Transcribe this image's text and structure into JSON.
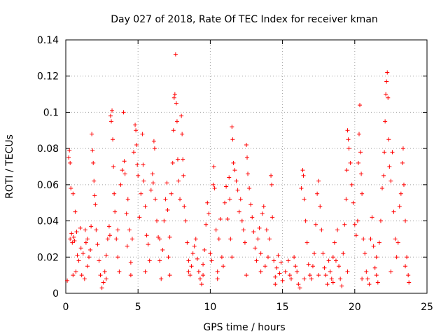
{
  "chart_data": {
    "type": "scatter",
    "title": "Day 027 of 2018, Rate Of TEC Index for receiver kman",
    "xlabel": "GPS time / hours",
    "ylabel": "ROTI / TECUs",
    "xlim": [
      0,
      25
    ],
    "ylim": [
      0,
      0.14
    ],
    "x_ticks": [
      0,
      5,
      10,
      15,
      20,
      25
    ],
    "x_tick_labels": [
      "0",
      "5",
      "10",
      "15",
      "20",
      "25"
    ],
    "y_ticks": [
      0,
      0.02,
      0.04,
      0.06,
      0.08,
      0.1,
      0.12,
      0.14
    ],
    "y_tick_labels": [
      "0",
      "0.02",
      "0.04",
      "0.06",
      "0.08",
      "0.1",
      "0.12",
      "0.14"
    ],
    "grid": true,
    "marker": "+",
    "color": "#ff0000",
    "series": [
      {
        "name": "ROTI",
        "points": [
          [
            0.1,
            0.007
          ],
          [
            0.2,
            0.075
          ],
          [
            0.25,
            0.079
          ],
          [
            0.3,
            0.072
          ],
          [
            0.35,
            0.058
          ],
          [
            0.4,
            0.033
          ],
          [
            0.45,
            0.028
          ],
          [
            0.5,
            0.055
          ],
          [
            0.55,
            0.031
          ],
          [
            0.6,
            0.029
          ],
          [
            0.65,
            0.045
          ],
          [
            0.7,
            0.012
          ],
          [
            0.75,
            0.034
          ],
          [
            0.8,
            0.021
          ],
          [
            0.9,
            0.018
          ],
          [
            1.0,
            0.036
          ],
          [
            1.05,
            0.025
          ],
          [
            1.1,
            0.01
          ],
          [
            1.2,
            0.022
          ],
          [
            1.3,
            0.008
          ],
          [
            1.35,
            0.035
          ],
          [
            1.4,
            0.028
          ],
          [
            1.5,
            0.015
          ],
          [
            1.6,
            0.02
          ],
          [
            1.7,
            0.024
          ],
          [
            1.75,
            0.037
          ],
          [
            1.8,
            0.088
          ],
          [
            1.85,
            0.079
          ],
          [
            1.9,
            0.072
          ],
          [
            1.95,
            0.062
          ],
          [
            2.0,
            0.054
          ],
          [
            2.05,
            0.049
          ],
          [
            2.1,
            0.035
          ],
          [
            2.2,
            0.027
          ],
          [
            2.3,
            0.018
          ],
          [
            2.4,
            0.01
          ],
          [
            2.5,
            0.003
          ],
          [
            2.6,
            0.006
          ],
          [
            2.7,
            0.012
          ],
          [
            2.8,
            0.021
          ],
          [
            2.9,
            0.03
          ],
          [
            3.0,
            0.037
          ],
          [
            3.05,
            0.032
          ],
          [
            3.1,
            0.098
          ],
          [
            3.15,
            0.095
          ],
          [
            3.2,
            0.101
          ],
          [
            3.25,
            0.085
          ],
          [
            3.3,
            0.07
          ],
          [
            3.35,
            0.055
          ],
          [
            3.4,
            0.045
          ],
          [
            3.5,
            0.03
          ],
          [
            3.6,
            0.02
          ],
          [
            3.7,
            0.012
          ],
          [
            3.8,
            0.06
          ],
          [
            3.9,
            0.068
          ],
          [
            4.0,
            0.1
          ],
          [
            4.05,
            0.073
          ],
          [
            4.1,
            0.066
          ],
          [
            4.2,
            0.044
          ],
          [
            4.25,
            0.026
          ],
          [
            4.3,
            0.052
          ],
          [
            4.4,
            0.035
          ],
          [
            4.5,
            0.017
          ],
          [
            4.6,
            0.03
          ],
          [
            4.7,
            0.078
          ],
          [
            4.8,
            0.093
          ],
          [
            4.85,
            0.09
          ],
          [
            4.9,
            0.082
          ],
          [
            4.95,
            0.071
          ],
          [
            5.0,
            0.065
          ],
          [
            5.1,
            0.042
          ],
          [
            5.2,
            0.055
          ],
          [
            5.3,
            0.088
          ],
          [
            5.35,
            0.071
          ],
          [
            5.4,
            0.062
          ],
          [
            5.5,
            0.048
          ],
          [
            5.6,
            0.032
          ],
          [
            5.7,
            0.027
          ],
          [
            5.8,
            0.018
          ],
          [
            5.9,
            0.057
          ],
          [
            6.0,
            0.066
          ],
          [
            6.05,
            0.061
          ],
          [
            6.1,
            0.084
          ],
          [
            6.15,
            0.08
          ],
          [
            6.2,
            0.052
          ],
          [
            6.3,
            0.04
          ],
          [
            6.4,
            0.031
          ],
          [
            6.5,
            0.018
          ],
          [
            6.6,
            0.008
          ],
          [
            6.7,
            0.024
          ],
          [
            6.8,
            0.04
          ],
          [
            6.9,
            0.052
          ],
          [
            7.0,
            0.061
          ],
          [
            7.05,
            0.046
          ],
          [
            7.1,
            0.02
          ],
          [
            7.2,
            0.031
          ],
          [
            7.3,
            0.055
          ],
          [
            7.4,
            0.072
          ],
          [
            7.45,
            0.09
          ],
          [
            7.5,
            0.108
          ],
          [
            7.55,
            0.11
          ],
          [
            7.6,
            0.132
          ],
          [
            7.65,
            0.105
          ],
          [
            7.7,
            0.095
          ],
          [
            7.75,
            0.074
          ],
          [
            7.8,
            0.062
          ],
          [
            7.9,
            0.052
          ],
          [
            8.0,
            0.098
          ],
          [
            8.05,
            0.088
          ],
          [
            8.1,
            0.074
          ],
          [
            8.15,
            0.065
          ],
          [
            8.2,
            0.048
          ],
          [
            8.3,
            0.04
          ],
          [
            8.4,
            0.028
          ],
          [
            8.5,
            0.018
          ],
          [
            8.6,
            0.01
          ],
          [
            8.7,
            0.015
          ],
          [
            8.8,
            0.022
          ],
          [
            8.9,
            0.026
          ],
          [
            9.0,
            0.03
          ],
          [
            9.1,
            0.019
          ],
          [
            9.2,
            0.012
          ],
          [
            9.3,
            0.008
          ],
          [
            9.4,
            0.005
          ],
          [
            9.5,
            0.016
          ],
          [
            9.6,
            0.024
          ],
          [
            9.7,
            0.038
          ],
          [
            9.8,
            0.05
          ],
          [
            9.9,
            0.044
          ],
          [
            10.0,
            0.022
          ],
          [
            10.1,
            0.018
          ],
          [
            10.2,
            0.06
          ],
          [
            10.25,
            0.07
          ],
          [
            10.3,
            0.058
          ],
          [
            10.4,
            0.035
          ],
          [
            10.5,
            0.012
          ],
          [
            10.6,
            0.03
          ],
          [
            10.7,
            0.041
          ],
          [
            10.8,
            0.02
          ],
          [
            10.9,
            0.015
          ],
          [
            11.0,
            0.05
          ],
          [
            11.1,
            0.059
          ],
          [
            11.2,
            0.041
          ],
          [
            11.3,
            0.064
          ],
          [
            11.35,
            0.052
          ],
          [
            11.4,
            0.03
          ],
          [
            11.5,
            0.092
          ],
          [
            11.55,
            0.085
          ],
          [
            11.6,
            0.072
          ],
          [
            11.7,
            0.068
          ],
          [
            11.8,
            0.062
          ],
          [
            11.9,
            0.057
          ],
          [
            12.0,
            0.045
          ],
          [
            12.1,
            0.052
          ],
          [
            12.2,
            0.04
          ],
          [
            12.3,
            0.035
          ],
          [
            12.4,
            0.028
          ],
          [
            12.5,
            0.082
          ],
          [
            12.55,
            0.075
          ],
          [
            12.6,
            0.066
          ],
          [
            12.7,
            0.058
          ],
          [
            12.8,
            0.049
          ],
          [
            12.9,
            0.042
          ],
          [
            13.0,
            0.034
          ],
          [
            13.1,
            0.025
          ],
          [
            13.2,
            0.018
          ],
          [
            13.3,
            0.03
          ],
          [
            13.4,
            0.036
          ],
          [
            13.5,
            0.022
          ],
          [
            13.6,
            0.044
          ],
          [
            13.7,
            0.048
          ],
          [
            13.8,
            0.015
          ],
          [
            13.9,
            0.035
          ],
          [
            14.0,
            0.02
          ],
          [
            14.1,
            0.03
          ],
          [
            14.2,
            0.065
          ],
          [
            14.25,
            0.06
          ],
          [
            14.3,
            0.042
          ],
          [
            14.4,
            0.018
          ],
          [
            14.5,
            0.009
          ],
          [
            14.6,
            0.014
          ],
          [
            14.7,
            0.021
          ],
          [
            14.8,
            0.011
          ],
          [
            14.9,
            0.017
          ],
          [
            15.0,
            0.007
          ],
          [
            15.2,
            0.012
          ],
          [
            15.4,
            0.018
          ],
          [
            15.6,
            0.008
          ],
          [
            15.8,
            0.02
          ],
          [
            15.9,
            0.015
          ],
          [
            16.0,
            0.012
          ],
          [
            16.1,
            0.005
          ],
          [
            16.2,
            0.003
          ],
          [
            16.3,
            0.058
          ],
          [
            16.4,
            0.068
          ],
          [
            16.45,
            0.065
          ],
          [
            16.5,
            0.052
          ],
          [
            16.6,
            0.04
          ],
          [
            16.7,
            0.028
          ],
          [
            16.8,
            0.016
          ],
          [
            16.9,
            0.01
          ],
          [
            17.0,
            0.008
          ],
          [
            17.1,
            0.015
          ],
          [
            17.2,
            0.022
          ],
          [
            17.3,
            0.038
          ],
          [
            17.4,
            0.055
          ],
          [
            17.5,
            0.062
          ],
          [
            17.6,
            0.048
          ],
          [
            17.7,
            0.035
          ],
          [
            17.8,
            0.022
          ],
          [
            17.9,
            0.014
          ],
          [
            18.0,
            0.01
          ],
          [
            18.1,
            0.005
          ],
          [
            18.2,
            0.018
          ],
          [
            18.3,
            0.012
          ],
          [
            18.4,
            0.008
          ],
          [
            18.5,
            0.02
          ],
          [
            18.6,
            0.028
          ],
          [
            18.7,
            0.018
          ],
          [
            18.8,
            0.035
          ],
          [
            18.9,
            0.015
          ],
          [
            19.0,
            0.008
          ],
          [
            19.1,
            0.004
          ],
          [
            19.2,
            0.022
          ],
          [
            19.3,
            0.038
          ],
          [
            19.4,
            0.052
          ],
          [
            19.45,
            0.068
          ],
          [
            19.5,
            0.09
          ],
          [
            19.55,
            0.085
          ],
          [
            19.6,
            0.08
          ],
          [
            19.7,
            0.072
          ],
          [
            19.8,
            0.06
          ],
          [
            19.9,
            0.05
          ],
          [
            20.0,
            0.038
          ],
          [
            20.1,
            0.032
          ],
          [
            20.2,
            0.04
          ],
          [
            20.25,
            0.072
          ],
          [
            20.3,
            0.088
          ],
          [
            20.35,
            0.104
          ],
          [
            20.4,
            0.078
          ],
          [
            20.45,
            0.066
          ],
          [
            20.5,
            0.055
          ],
          [
            20.6,
            0.03
          ],
          [
            20.7,
            0.022
          ],
          [
            20.8,
            0.012
          ],
          [
            20.9,
            0.008
          ],
          [
            21.0,
            0.005
          ],
          [
            21.1,
            0.03
          ],
          [
            21.2,
            0.042
          ],
          [
            21.3,
            0.026
          ],
          [
            21.4,
            0.014
          ],
          [
            21.5,
            0.02
          ],
          [
            21.6,
            0.006
          ],
          [
            21.7,
            0.028
          ],
          [
            21.8,
            0.04
          ],
          [
            21.9,
            0.058
          ],
          [
            22.0,
            0.065
          ],
          [
            22.05,
            0.078
          ],
          [
            22.1,
            0.095
          ],
          [
            22.15,
            0.11
          ],
          [
            22.2,
            0.117
          ],
          [
            22.25,
            0.122
          ],
          [
            22.3,
            0.108
          ],
          [
            22.35,
            0.085
          ],
          [
            22.4,
            0.07
          ],
          [
            22.5,
            0.062
          ],
          [
            22.6,
            0.078
          ],
          [
            22.7,
            0.045
          ],
          [
            22.8,
            0.03
          ],
          [
            22.9,
            0.02
          ],
          [
            23.0,
            0.028
          ],
          [
            23.1,
            0.048
          ],
          [
            23.2,
            0.055
          ],
          [
            23.3,
            0.072
          ],
          [
            23.35,
            0.08
          ],
          [
            23.4,
            0.06
          ],
          [
            23.5,
            0.04
          ],
          [
            23.6,
            0.02
          ],
          [
            23.7,
            0.01
          ],
          [
            23.75,
            0.006
          ],
          [
            0.3,
            0.03
          ],
          [
            0.5,
            0.01
          ],
          [
            1.5,
            0.03
          ],
          [
            2.8,
            0.008
          ],
          [
            3.6,
            0.035
          ],
          [
            4.5,
            0.01
          ],
          [
            5.5,
            0.012
          ],
          [
            6.5,
            0.03
          ],
          [
            7.2,
            0.01
          ],
          [
            8.5,
            0.012
          ],
          [
            9.5,
            0.01
          ],
          [
            10.5,
            0.008
          ],
          [
            11.5,
            0.02
          ],
          [
            12.5,
            0.01
          ],
          [
            13.5,
            0.012
          ],
          [
            14.5,
            0.005
          ],
          [
            15.5,
            0.01
          ],
          [
            16.5,
            0.008
          ],
          [
            17.5,
            0.01
          ],
          [
            18.5,
            0.006
          ],
          [
            19.5,
            0.012
          ],
          [
            20.5,
            0.008
          ],
          [
            21.5,
            0.01
          ],
          [
            22.5,
            0.012
          ],
          [
            23.5,
            0.015
          ]
        ]
      }
    ]
  }
}
